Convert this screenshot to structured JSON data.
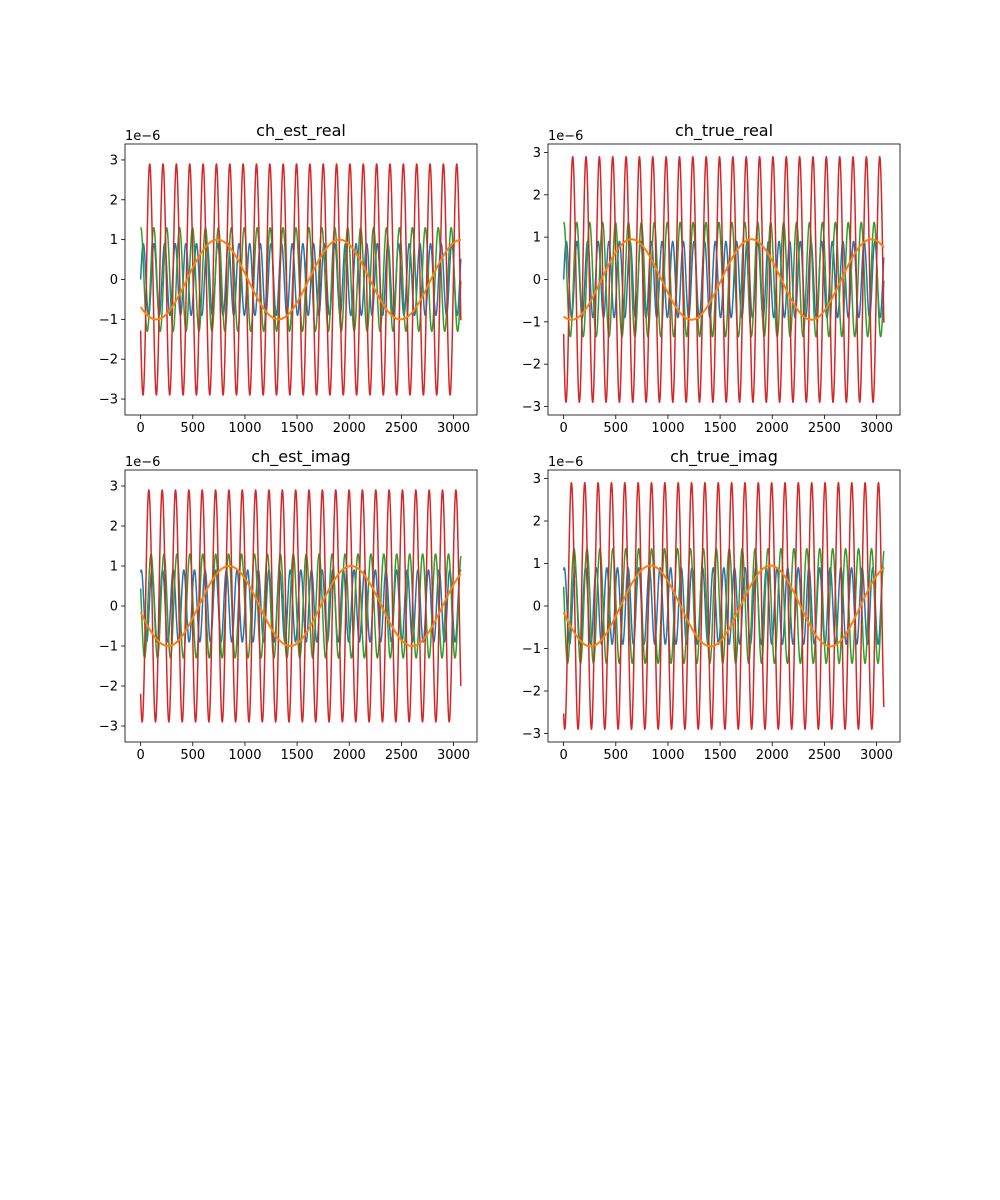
{
  "chart_data": [
    {
      "type": "line",
      "title": "ch_est_real",
      "offset_text": "1e−6",
      "xlim": [
        -150,
        3225
      ],
      "ylim": [
        -3.4,
        3.4
      ],
      "xticks": [
        0,
        500,
        1000,
        1500,
        2000,
        2500,
        3000
      ],
      "yticks": [
        -3,
        -2,
        -1,
        0,
        1,
        2,
        3
      ],
      "xtick_labels": [
        "0",
        "500",
        "1000",
        "1500",
        "2000",
        "2500",
        "3000"
      ],
      "ytick_labels": [
        "−3",
        "−2",
        "−1",
        "0",
        "1",
        "2",
        "3"
      ],
      "grid": false,
      "x_range": [
        0,
        3071
      ],
      "series": [
        {
          "color": "#1f77b4",
          "amplitude": 0.9,
          "period": 102,
          "phase": 0.0,
          "offset": 0.0
        },
        {
          "color": "#2ca02c",
          "amplitude": 1.3,
          "period": 124,
          "phase": 1.5,
          "offset": 0.0
        },
        {
          "color": "#d62728",
          "amplitude": 2.9,
          "period": 128,
          "phase": 3.6,
          "offset": 0.0
        },
        {
          "color": "#ff7f0e",
          "amplitude": 1.0,
          "period": 1170,
          "phase": 3.9,
          "offset": 0.0
        }
      ]
    },
    {
      "type": "line",
      "title": "ch_true_real",
      "offset_text": "1e−6",
      "xlim": [
        -150,
        3225
      ],
      "ylim": [
        -3.2,
        3.2
      ],
      "xticks": [
        0,
        500,
        1000,
        1500,
        2000,
        2500,
        3000
      ],
      "yticks": [
        -3,
        -2,
        -1,
        0,
        1,
        2,
        3
      ],
      "xtick_labels": [
        "0",
        "500",
        "1000",
        "1500",
        "2000",
        "2500",
        "3000"
      ],
      "ytick_labels": [
        "−3",
        "−2",
        "−1",
        "0",
        "1",
        "2",
        "3"
      ],
      "grid": false,
      "x_range": [
        0,
        3071
      ],
      "series": [
        {
          "color": "#1f77b4",
          "amplitude": 0.9,
          "period": 102,
          "phase": 0.0,
          "offset": 0.0
        },
        {
          "color": "#2ca02c",
          "amplitude": 1.35,
          "period": 124,
          "phase": 1.5,
          "offset": 0.0
        },
        {
          "color": "#d62728",
          "amplitude": 2.9,
          "period": 128,
          "phase": 3.6,
          "offset": 0.0
        },
        {
          "color": "#ff7f0e",
          "amplitude": 0.95,
          "period": 1150,
          "phase": 4.3,
          "offset": 0.0
        }
      ]
    },
    {
      "type": "line",
      "title": "ch_est_imag",
      "offset_text": "1e−6",
      "xlim": [
        -150,
        3225
      ],
      "ylim": [
        -3.4,
        3.4
      ],
      "xticks": [
        0,
        500,
        1000,
        1500,
        2000,
        2500,
        3000
      ],
      "yticks": [
        -3,
        -2,
        -1,
        0,
        1,
        2,
        3
      ],
      "xtick_labels": [
        "0",
        "500",
        "1000",
        "1500",
        "2000",
        "2500",
        "3000"
      ],
      "ytick_labels": [
        "−3",
        "−2",
        "−1",
        "0",
        "1",
        "2",
        "3"
      ],
      "grid": false,
      "x_range": [
        0,
        3071
      ],
      "series": [
        {
          "color": "#1f77b4",
          "amplitude": 0.9,
          "period": 102,
          "phase": 1.2,
          "offset": 0.0
        },
        {
          "color": "#2ca02c",
          "amplitude": 1.3,
          "period": 124,
          "phase": 2.8,
          "offset": 0.0
        },
        {
          "color": "#d62728",
          "amplitude": 2.9,
          "period": 128,
          "phase": 4.0,
          "offset": 0.0
        },
        {
          "color": "#ff7f0e",
          "amplitude": 1.0,
          "period": 1170,
          "phase": 3.3,
          "offset": 0.0
        }
      ]
    },
    {
      "type": "line",
      "title": "ch_true_imag",
      "offset_text": "1e−6",
      "xlim": [
        -150,
        3225
      ],
      "ylim": [
        -3.2,
        3.2
      ],
      "xticks": [
        0,
        500,
        1000,
        1500,
        2000,
        2500,
        3000
      ],
      "yticks": [
        -3,
        -2,
        -1,
        0,
        1,
        2,
        3
      ],
      "xtick_labels": [
        "0",
        "500",
        "1000",
        "1500",
        "2000",
        "2500",
        "3000"
      ],
      "ytick_labels": [
        "−3",
        "−2",
        "−1",
        "0",
        "1",
        "2",
        "3"
      ],
      "grid": false,
      "x_range": [
        0,
        3071
      ],
      "series": [
        {
          "color": "#1f77b4",
          "amplitude": 0.9,
          "period": 102,
          "phase": 1.2,
          "offset": 0.0
        },
        {
          "color": "#2ca02c",
          "amplitude": 1.35,
          "period": 124,
          "phase": 2.8,
          "offset": 0.0
        },
        {
          "color": "#d62728",
          "amplitude": 2.9,
          "period": 128,
          "phase": 4.2,
          "offset": 0.0
        },
        {
          "color": "#ff7f0e",
          "amplitude": 0.95,
          "period": 1150,
          "phase": 3.3,
          "offset": 0.0
        }
      ]
    }
  ]
}
